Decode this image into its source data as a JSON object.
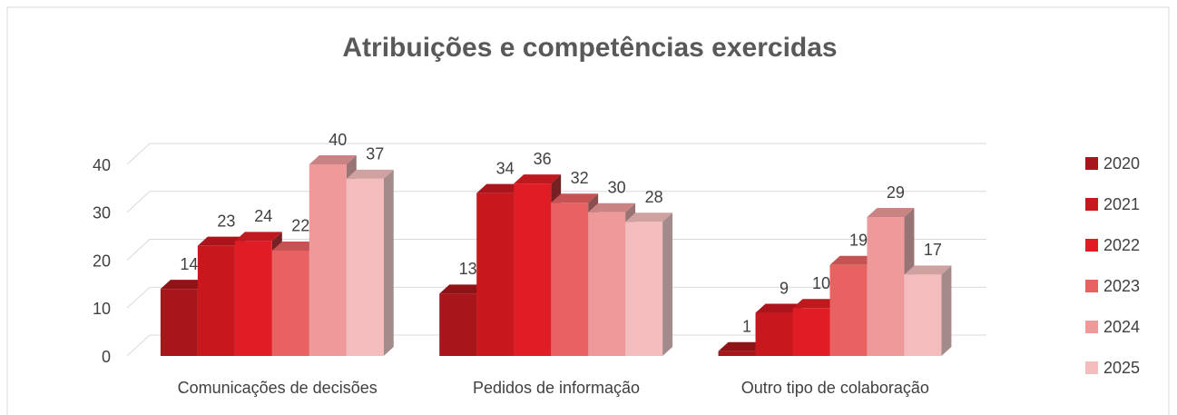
{
  "chart_data": {
    "type": "bar3d",
    "title": "Atribuições e competências exercidas",
    "categories": [
      "Comunicações de decisões",
      "Pedidos de informação",
      "Outro tipo de colaboração"
    ],
    "series": [
      {
        "name": "2020",
        "color": "#a8161b",
        "values": [
          14,
          13,
          1
        ]
      },
      {
        "name": "2021",
        "color": "#c8181e",
        "values": [
          23,
          34,
          9
        ]
      },
      {
        "name": "2022",
        "color": "#e01d25",
        "values": [
          24,
          36,
          10
        ]
      },
      {
        "name": "2023",
        "color": "#e86262",
        "values": [
          22,
          32,
          19
        ]
      },
      {
        "name": "2024",
        "color": "#ee9a9a",
        "values": [
          40,
          30,
          29
        ]
      },
      {
        "name": "2025",
        "color": "#f4bdbd",
        "values": [
          37,
          28,
          17
        ]
      }
    ],
    "ylim": [
      0,
      40
    ],
    "yticks": [
      0,
      10,
      20,
      30,
      40
    ],
    "grid": true,
    "legend": "right"
  }
}
